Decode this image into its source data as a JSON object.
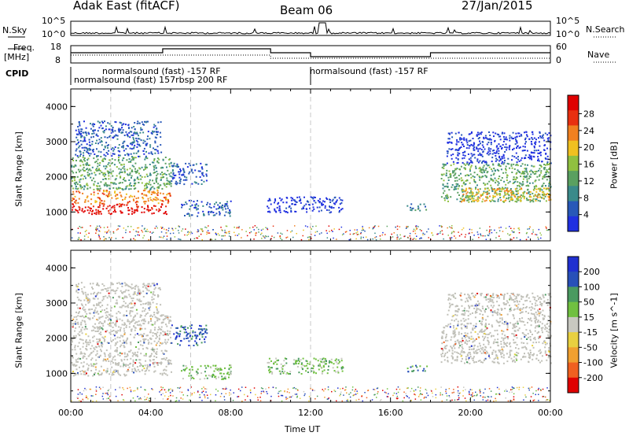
{
  "header": {
    "station": "Adak East (fitACF)",
    "beam": "Beam 06",
    "date": "27/Jan/2015"
  },
  "strip_labels": {
    "nsky": "N.Sky",
    "nsearch": "N.Search",
    "freq_line1": "Freq.",
    "freq_line2": "[MHz]",
    "nave": "Nave",
    "cpid": "CPID"
  },
  "strip_ticks": {
    "noise_left": [
      "10^5",
      "10^0"
    ],
    "noise_right": [
      "10^5",
      "10^0"
    ],
    "freq_left": [
      "18",
      "8"
    ],
    "nave_right": [
      "60",
      "0"
    ]
  },
  "cpid_labels": [
    {
      "text": "normalsound (fast) -157 RF",
      "start": 2.5
    },
    {
      "text": "normalsound (fast) 157rbsp 200 RF",
      "start": 0.2
    },
    {
      "text": "normalsound (fast) -157 RF",
      "start": 12.0
    }
  ],
  "colors": {
    "power": [
      "#2030e0",
      "#2858b8",
      "#3a8a8a",
      "#5aa060",
      "#90c040",
      "#f0c020",
      "#f08020",
      "#e83010",
      "#e00000"
    ],
    "velocity": [
      "#2030d0",
      "#2850b8",
      "#4a9a60",
      "#70c040",
      "#c8c8c0",
      "#e8d040",
      "#f0a030",
      "#f06020",
      "#e00000"
    ],
    "ground_scatter": "#c0c0b8"
  },
  "chart_data": [
    {
      "type": "heatmap",
      "name": "Power",
      "ylabel": "Slant Range [km]",
      "colorbar_label": "Power [dB]",
      "colorbar_ticks": [
        "4",
        "8",
        "12",
        "16",
        "20",
        "24",
        "28"
      ],
      "yticks": [
        "1000",
        "2000",
        "3000",
        "4000"
      ],
      "ylim": [
        180,
        4500
      ],
      "xlim": [
        0,
        24
      ],
      "regions": [
        {
          "t0": 0.0,
          "t1": 4.9,
          "r0": 950,
          "r1": 1250,
          "level": 8
        },
        {
          "t0": 0.0,
          "t1": 5.0,
          "r0": 1250,
          "r1": 1650,
          "level": 6
        },
        {
          "t0": 0.0,
          "t1": 5.0,
          "r0": 1650,
          "r1": 2600,
          "level": 3
        },
        {
          "t0": 0.2,
          "t1": 4.5,
          "r0": 2600,
          "r1": 3600,
          "level": 1
        },
        {
          "t0": 5.0,
          "t1": 6.8,
          "r0": 1800,
          "r1": 2400,
          "level": 1
        },
        {
          "t0": 5.5,
          "t1": 8.0,
          "r0": 900,
          "r1": 1350,
          "level": 1
        },
        {
          "t0": 9.8,
          "t1": 13.6,
          "r0": 1000,
          "r1": 1450,
          "level": 0
        },
        {
          "t0": 16.8,
          "t1": 17.8,
          "r0": 1050,
          "r1": 1250,
          "level": 2
        },
        {
          "t0": 18.5,
          "t1": 24.0,
          "r0": 1300,
          "r1": 2400,
          "level": 3
        },
        {
          "t0": 19.5,
          "t1": 24.0,
          "r0": 1300,
          "r1": 1700,
          "level": 5
        },
        {
          "t0": 18.8,
          "t1": 24.0,
          "r0": 2400,
          "r1": 3300,
          "level": 0
        }
      ]
    },
    {
      "type": "heatmap",
      "name": "Velocity",
      "ylabel": "Slant Range [km]",
      "colorbar_label": "Velocity [m s^-1]",
      "colorbar_ticks": [
        "200",
        "100",
        "50",
        "15",
        "-15",
        "-50",
        "-100",
        "-200"
      ],
      "yticks": [
        "1000",
        "2000",
        "3000",
        "4000"
      ],
      "ylim": [
        180,
        4500
      ],
      "xlim": [
        0,
        24
      ],
      "xticks": [
        "00:00",
        "04:00",
        "08:00",
        "12:00",
        "16:00",
        "20:00",
        "00:00"
      ],
      "xlabel": "Time UT",
      "regions": [
        {
          "t0": 0.0,
          "t1": 5.0,
          "r0": 950,
          "r1": 2700,
          "level": "gs"
        },
        {
          "t0": 0.2,
          "t1": 4.5,
          "r0": 2700,
          "r1": 3600,
          "level": "gs"
        },
        {
          "t0": 5.0,
          "t1": 6.8,
          "r0": 1800,
          "r1": 2400,
          "level": 1
        },
        {
          "t0": 5.5,
          "t1": 8.0,
          "r0": 850,
          "r1": 1250,
          "level": 3
        },
        {
          "t0": 9.8,
          "t1": 13.6,
          "r0": 1000,
          "r1": 1450,
          "level": 3
        },
        {
          "t0": 16.8,
          "t1": 17.8,
          "r0": 1050,
          "r1": 1250,
          "level": 2
        },
        {
          "t0": 18.5,
          "t1": 24.0,
          "r0": 1300,
          "r1": 2400,
          "level": "gs"
        },
        {
          "t0": 18.8,
          "t1": 24.0,
          "r0": 2400,
          "r1": 3300,
          "level": "gs"
        }
      ]
    }
  ]
}
